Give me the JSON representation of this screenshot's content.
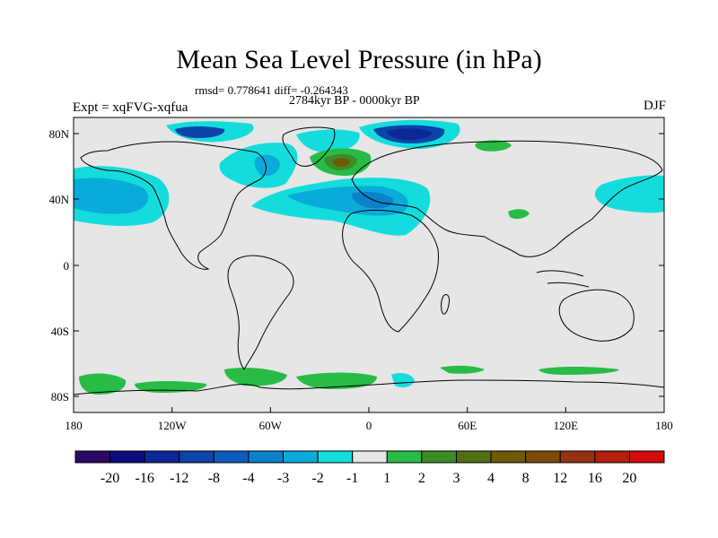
{
  "title": "Mean Sea Level Pressure (in hPa)",
  "stats_line": "rmsd= 0.778641 diff= -0.264343",
  "period_line": "2784kyr BP - 0000kyr BP",
  "experiment_label": "Expt = xqFVG-xqfua",
  "season_label": "DJF",
  "lat_ticks": [
    "80N",
    "40N",
    "0",
    "40S",
    "80S"
  ],
  "lon_ticks": [
    "180",
    "120W",
    "60W",
    "0",
    "60E",
    "120E",
    "180"
  ],
  "colorbar": {
    "colors": [
      "#2a0a64",
      "#0c0c80",
      "#0c2896",
      "#0c44aa",
      "#0c5cbe",
      "#0a82cc",
      "#0aaada",
      "#14dcdc",
      "#e6e6e6",
      "#28bc46",
      "#3c8c28",
      "#507010",
      "#6e5a05",
      "#7a4a08",
      "#963214",
      "#b41e0a",
      "#d20a0a"
    ],
    "labels": [
      "-20",
      "-16",
      "-12",
      "-8",
      "-4",
      "-3",
      "-2",
      "-1",
      "1",
      "2",
      "3",
      "4",
      "8",
      "12",
      "16",
      "20"
    ]
  },
  "colors": {
    "neutral": "#e6e6e6",
    "light_blue": "#14dcdc",
    "mid_blue": "#0aaada",
    "blue": "#0a82cc",
    "deep_blue": "#0c44aa",
    "navy": "#0c2896",
    "green": "#28bc46",
    "olive": "#3c8c28",
    "brown": "#6e5a05"
  }
}
